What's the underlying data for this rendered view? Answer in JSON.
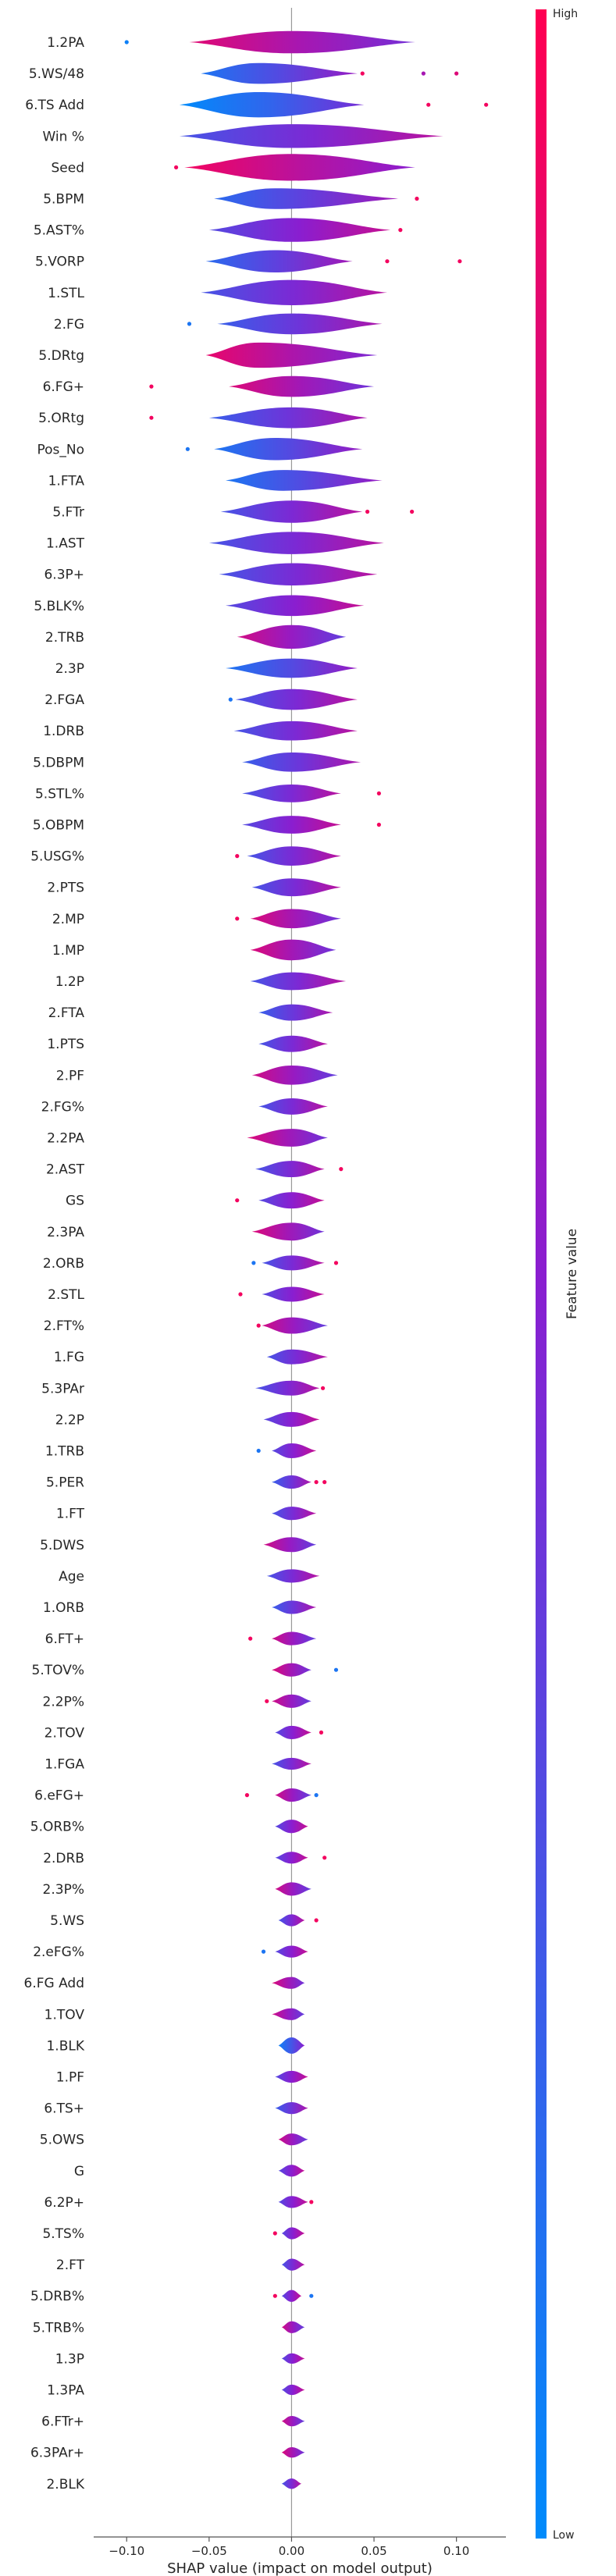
{
  "chart_data": {
    "type": "violin",
    "xlabel": "SHAP value (impact on model output)",
    "xlim": [
      -0.12,
      0.13
    ],
    "xticks": [
      -0.1,
      -0.05,
      0.0,
      0.05,
      0.1
    ],
    "xtick_labels": [
      "−0.10",
      "−0.05",
      "0.00",
      "0.05",
      "0.10"
    ],
    "colorbar": {
      "title": "Feature value",
      "high_label": "High",
      "low_label": "Low",
      "low_color": "#008bfb",
      "high_color": "#ff0052"
    },
    "features": [
      {
        "name": "1.2PA",
        "lo": -0.062,
        "hi": 0.075,
        "peak": 0.0,
        "width": 0.75,
        "hue": 0.62,
        "outliers": [
          [
            -0.1,
            0.05
          ]
        ]
      },
      {
        "name": "5.WS/48",
        "lo": -0.055,
        "hi": 0.04,
        "peak": -0.02,
        "width": 0.7,
        "hue": 0.3,
        "outliers": [
          [
            0.043,
            0.95
          ],
          [
            0.08,
            0.62
          ],
          [
            0.1,
            0.85
          ]
        ]
      },
      {
        "name": "6.TS Add",
        "lo": -0.068,
        "hi": 0.044,
        "peak": -0.02,
        "width": 0.85,
        "hue": 0.18,
        "outliers": [
          [
            0.083,
            0.95
          ],
          [
            0.118,
            0.95
          ]
        ]
      },
      {
        "name": "Win %",
        "lo": -0.068,
        "hi": 0.092,
        "peak": 0.0,
        "width": 0.8,
        "hue": 0.45,
        "outliers": []
      },
      {
        "name": "Seed",
        "lo": -0.065,
        "hi": 0.075,
        "peak": 0.0,
        "width": 0.9,
        "hue": 0.7,
        "outliers": [
          [
            -0.07,
            0.95
          ]
        ]
      },
      {
        "name": "5.BPM",
        "lo": -0.047,
        "hi": 0.065,
        "peak": -0.01,
        "width": 0.7,
        "hue": 0.35,
        "outliers": [
          [
            0.076,
            0.95
          ]
        ]
      },
      {
        "name": "5.AST%",
        "lo": -0.05,
        "hi": 0.06,
        "peak": 0.0,
        "width": 0.8,
        "hue": 0.5,
        "outliers": [
          [
            0.066,
            0.95
          ]
        ]
      },
      {
        "name": "5.VORP",
        "lo": -0.052,
        "hi": 0.037,
        "peak": -0.01,
        "width": 0.75,
        "hue": 0.35,
        "outliers": [
          [
            0.058,
            0.95
          ],
          [
            0.102,
            0.95
          ]
        ]
      },
      {
        "name": "1.STL",
        "lo": -0.055,
        "hi": 0.058,
        "peak": 0.0,
        "width": 0.85,
        "hue": 0.45,
        "outliers": []
      },
      {
        "name": "2.FG",
        "lo": -0.045,
        "hi": 0.055,
        "peak": 0.0,
        "width": 0.7,
        "hue": 0.4,
        "outliers": [
          [
            -0.062,
            0.1
          ]
        ]
      },
      {
        "name": "5.DRtg",
        "lo": -0.052,
        "hi": 0.052,
        "peak": -0.02,
        "width": 0.85,
        "hue": 0.65,
        "outliers": []
      },
      {
        "name": "6.FG+",
        "lo": -0.038,
        "hi": 0.05,
        "peak": 0.0,
        "width": 0.7,
        "hue": 0.6,
        "outliers": [
          [
            -0.085,
            0.95
          ]
        ]
      },
      {
        "name": "5.ORtg",
        "lo": -0.05,
        "hi": 0.046,
        "peak": 0.0,
        "width": 0.7,
        "hue": 0.4,
        "outliers": [
          [
            -0.085,
            0.95
          ]
        ]
      },
      {
        "name": "Pos_No",
        "lo": -0.047,
        "hi": 0.043,
        "peak": -0.01,
        "width": 0.75,
        "hue": 0.3,
        "outliers": [
          [
            -0.063,
            0.1
          ]
        ]
      },
      {
        "name": "1.FTA",
        "lo": -0.04,
        "hi": 0.055,
        "peak": -0.005,
        "width": 0.7,
        "hue": 0.3,
        "outliers": []
      },
      {
        "name": "5.FTr",
        "lo": -0.043,
        "hi": 0.043,
        "peak": 0.0,
        "width": 0.75,
        "hue": 0.45,
        "outliers": [
          [
            0.046,
            0.95
          ],
          [
            0.073,
            0.95
          ]
        ]
      },
      {
        "name": "1.AST",
        "lo": -0.05,
        "hi": 0.056,
        "peak": 0.0,
        "width": 0.75,
        "hue": 0.45,
        "outliers": []
      },
      {
        "name": "6.3P+",
        "lo": -0.044,
        "hi": 0.052,
        "peak": 0.0,
        "width": 0.75,
        "hue": 0.45,
        "outliers": []
      },
      {
        "name": "5.BLK%",
        "lo": -0.04,
        "hi": 0.044,
        "peak": 0.0,
        "width": 0.7,
        "hue": 0.5,
        "outliers": []
      },
      {
        "name": "2.TRB",
        "lo": -0.033,
        "hi": 0.033,
        "peak": 0.0,
        "width": 0.8,
        "hue": 0.55,
        "outliers": []
      },
      {
        "name": "2.3P",
        "lo": -0.04,
        "hi": 0.04,
        "peak": 0.0,
        "width": 0.65,
        "hue": 0.3,
        "outliers": []
      },
      {
        "name": "2.FGA",
        "lo": -0.034,
        "hi": 0.04,
        "peak": 0.0,
        "width": 0.7,
        "hue": 0.45,
        "outliers": [
          [
            -0.037,
            0.1
          ]
        ]
      },
      {
        "name": "1.DRB",
        "lo": -0.035,
        "hi": 0.04,
        "peak": 0.0,
        "width": 0.65,
        "hue": 0.45,
        "outliers": []
      },
      {
        "name": "5.DBPM",
        "lo": -0.03,
        "hi": 0.042,
        "peak": 0.0,
        "width": 0.65,
        "hue": 0.4,
        "outliers": []
      },
      {
        "name": "5.STL%",
        "lo": -0.03,
        "hi": 0.03,
        "peak": 0.0,
        "width": 0.6,
        "hue": 0.45,
        "outliers": [
          [
            0.053,
            0.95
          ]
        ]
      },
      {
        "name": "5.OBPM",
        "lo": -0.03,
        "hi": 0.03,
        "peak": 0.0,
        "width": 0.6,
        "hue": 0.5,
        "outliers": [
          [
            0.053,
            0.95
          ]
        ]
      },
      {
        "name": "5.USG%",
        "lo": -0.027,
        "hi": 0.03,
        "peak": 0.0,
        "width": 0.65,
        "hue": 0.45,
        "outliers": [
          [
            -0.033,
            0.95
          ]
        ]
      },
      {
        "name": "2.PTS",
        "lo": -0.024,
        "hi": 0.03,
        "peak": 0.0,
        "width": 0.6,
        "hue": 0.45,
        "outliers": []
      },
      {
        "name": "2.MP",
        "lo": -0.025,
        "hi": 0.03,
        "peak": 0.0,
        "width": 0.65,
        "hue": 0.6,
        "outliers": [
          [
            -0.033,
            0.95
          ]
        ]
      },
      {
        "name": "1.MP",
        "lo": -0.025,
        "hi": 0.027,
        "peak": 0.0,
        "width": 0.7,
        "hue": 0.6,
        "outliers": []
      },
      {
        "name": "1.2P",
        "lo": -0.025,
        "hi": 0.033,
        "peak": 0.0,
        "width": 0.6,
        "hue": 0.45,
        "outliers": []
      },
      {
        "name": "2.FTA",
        "lo": -0.02,
        "hi": 0.025,
        "peak": 0.0,
        "width": 0.55,
        "hue": 0.4,
        "outliers": []
      },
      {
        "name": "1.PTS",
        "lo": -0.02,
        "hi": 0.022,
        "peak": 0.0,
        "width": 0.55,
        "hue": 0.45,
        "outliers": []
      },
      {
        "name": "2.PF",
        "lo": -0.024,
        "hi": 0.028,
        "peak": 0.0,
        "width": 0.65,
        "hue": 0.55,
        "outliers": []
      },
      {
        "name": "2.FG%",
        "lo": -0.02,
        "hi": 0.022,
        "peak": 0.0,
        "width": 0.55,
        "hue": 0.45,
        "outliers": []
      },
      {
        "name": "2.2PA",
        "lo": -0.027,
        "hi": 0.022,
        "peak": 0.0,
        "width": 0.6,
        "hue": 0.6,
        "outliers": []
      },
      {
        "name": "2.AST",
        "lo": -0.022,
        "hi": 0.02,
        "peak": 0.0,
        "width": 0.55,
        "hue": 0.45,
        "outliers": [
          [
            0.03,
            0.95
          ]
        ]
      },
      {
        "name": "GS",
        "lo": -0.02,
        "hi": 0.02,
        "peak": 0.0,
        "width": 0.55,
        "hue": 0.5,
        "outliers": [
          [
            -0.033,
            0.95
          ]
        ]
      },
      {
        "name": "2.3PA",
        "lo": -0.024,
        "hi": 0.02,
        "peak": 0.0,
        "width": 0.6,
        "hue": 0.6,
        "outliers": []
      },
      {
        "name": "2.ORB",
        "lo": -0.018,
        "hi": 0.02,
        "peak": 0.0,
        "width": 0.5,
        "hue": 0.45,
        "outliers": [
          [
            -0.023,
            0.1
          ],
          [
            0.027,
            0.95
          ]
        ]
      },
      {
        "name": "2.STL",
        "lo": -0.018,
        "hi": 0.02,
        "peak": 0.0,
        "width": 0.5,
        "hue": 0.5,
        "outliers": [
          [
            -0.031,
            0.95
          ]
        ]
      },
      {
        "name": "2.FT%",
        "lo": -0.018,
        "hi": 0.022,
        "peak": 0.0,
        "width": 0.55,
        "hue": 0.55,
        "outliers": [
          [
            -0.02,
            0.95
          ]
        ]
      },
      {
        "name": "1.FG",
        "lo": -0.015,
        "hi": 0.022,
        "peak": 0.0,
        "width": 0.5,
        "hue": 0.45,
        "outliers": []
      },
      {
        "name": "5.3PAr",
        "lo": -0.022,
        "hi": 0.017,
        "peak": 0.0,
        "width": 0.5,
        "hue": 0.45,
        "outliers": [
          [
            0.019,
            0.95
          ]
        ]
      },
      {
        "name": "2.2P",
        "lo": -0.017,
        "hi": 0.017,
        "peak": 0.0,
        "width": 0.5,
        "hue": 0.5,
        "outliers": []
      },
      {
        "name": "1.TRB",
        "lo": -0.012,
        "hi": 0.015,
        "peak": 0.0,
        "width": 0.5,
        "hue": 0.5,
        "outliers": [
          [
            -0.02,
            0.1
          ]
        ]
      },
      {
        "name": "5.PER",
        "lo": -0.012,
        "hi": 0.012,
        "peak": 0.0,
        "width": 0.45,
        "hue": 0.4,
        "outliers": [
          [
            0.015,
            0.95
          ],
          [
            0.02,
            0.95
          ]
        ]
      },
      {
        "name": "1.FT",
        "lo": -0.012,
        "hi": 0.015,
        "peak": 0.0,
        "width": 0.45,
        "hue": 0.45,
        "outliers": []
      },
      {
        "name": "5.DWS",
        "lo": -0.017,
        "hi": 0.015,
        "peak": 0.0,
        "width": 0.5,
        "hue": 0.55,
        "outliers": []
      },
      {
        "name": "Age",
        "lo": -0.015,
        "hi": 0.017,
        "peak": 0.0,
        "width": 0.45,
        "hue": 0.45,
        "outliers": []
      },
      {
        "name": "1.ORB",
        "lo": -0.012,
        "hi": 0.015,
        "peak": 0.0,
        "width": 0.45,
        "hue": 0.4,
        "outliers": []
      },
      {
        "name": "6.FT+",
        "lo": -0.012,
        "hi": 0.015,
        "peak": 0.0,
        "width": 0.45,
        "hue": 0.55,
        "outliers": [
          [
            -0.025,
            0.95
          ]
        ]
      },
      {
        "name": "5.TOV%",
        "lo": -0.012,
        "hi": 0.012,
        "peak": 0.0,
        "width": 0.45,
        "hue": 0.6,
        "outliers": [
          [
            0.027,
            0.1
          ]
        ]
      },
      {
        "name": "2.2P%",
        "lo": -0.012,
        "hi": 0.012,
        "peak": 0.0,
        "width": 0.45,
        "hue": 0.55,
        "outliers": [
          [
            -0.015,
            0.95
          ]
        ]
      },
      {
        "name": "2.TOV",
        "lo": -0.01,
        "hi": 0.012,
        "peak": 0.0,
        "width": 0.45,
        "hue": 0.5,
        "outliers": [
          [
            0.018,
            0.95
          ]
        ]
      },
      {
        "name": "1.FGA",
        "lo": -0.012,
        "hi": 0.012,
        "peak": 0.0,
        "width": 0.4,
        "hue": 0.45,
        "outliers": []
      },
      {
        "name": "6.eFG+",
        "lo": -0.01,
        "hi": 0.012,
        "peak": 0.0,
        "width": 0.45,
        "hue": 0.55,
        "outliers": [
          [
            -0.027,
            0.95
          ],
          [
            0.015,
            0.1
          ]
        ]
      },
      {
        "name": "5.ORB%",
        "lo": -0.01,
        "hi": 0.01,
        "peak": 0.0,
        "width": 0.45,
        "hue": 0.5,
        "outliers": []
      },
      {
        "name": "2.DRB",
        "lo": -0.01,
        "hi": 0.01,
        "peak": 0.0,
        "width": 0.4,
        "hue": 0.5,
        "outliers": [
          [
            0.02,
            0.95
          ]
        ]
      },
      {
        "name": "2.3P%",
        "lo": -0.01,
        "hi": 0.012,
        "peak": 0.0,
        "width": 0.45,
        "hue": 0.55,
        "outliers": []
      },
      {
        "name": "5.WS",
        "lo": -0.008,
        "hi": 0.008,
        "peak": 0.0,
        "width": 0.4,
        "hue": 0.45,
        "outliers": [
          [
            0.015,
            0.95
          ]
        ]
      },
      {
        "name": "2.eFG%",
        "lo": -0.01,
        "hi": 0.01,
        "peak": 0.0,
        "width": 0.4,
        "hue": 0.5,
        "outliers": [
          [
            -0.017,
            0.1
          ]
        ]
      },
      {
        "name": "6.FG Add",
        "lo": -0.012,
        "hi": 0.008,
        "peak": 0.0,
        "width": 0.4,
        "hue": 0.6,
        "outliers": []
      },
      {
        "name": "1.TOV",
        "lo": -0.012,
        "hi": 0.008,
        "peak": 0.0,
        "width": 0.4,
        "hue": 0.55,
        "outliers": []
      },
      {
        "name": "1.BLK",
        "lo": -0.008,
        "hi": 0.008,
        "peak": 0.0,
        "width": 0.55,
        "hue": 0.25,
        "outliers": []
      },
      {
        "name": "1.PF",
        "lo": -0.01,
        "hi": 0.01,
        "peak": 0.0,
        "width": 0.4,
        "hue": 0.5,
        "outliers": []
      },
      {
        "name": "6.TS+",
        "lo": -0.01,
        "hi": 0.01,
        "peak": 0.0,
        "width": 0.4,
        "hue": 0.4,
        "outliers": []
      },
      {
        "name": "5.OWS",
        "lo": -0.008,
        "hi": 0.01,
        "peak": 0.0,
        "width": 0.4,
        "hue": 0.55,
        "outliers": []
      },
      {
        "name": "G",
        "lo": -0.008,
        "hi": 0.008,
        "peak": 0.0,
        "width": 0.4,
        "hue": 0.5,
        "outliers": []
      },
      {
        "name": "6.2P+",
        "lo": -0.008,
        "hi": 0.01,
        "peak": 0.0,
        "width": 0.4,
        "hue": 0.5,
        "outliers": [
          [
            0.012,
            0.95
          ]
        ]
      },
      {
        "name": "5.TS%",
        "lo": -0.006,
        "hi": 0.008,
        "peak": 0.0,
        "width": 0.4,
        "hue": 0.5,
        "outliers": [
          [
            -0.01,
            0.95
          ]
        ]
      },
      {
        "name": "2.FT",
        "lo": -0.006,
        "hi": 0.008,
        "peak": 0.0,
        "width": 0.4,
        "hue": 0.45,
        "outliers": []
      },
      {
        "name": "5.DRB%",
        "lo": -0.006,
        "hi": 0.006,
        "peak": 0.0,
        "width": 0.4,
        "hue": 0.5,
        "outliers": [
          [
            -0.01,
            0.95
          ],
          [
            0.012,
            0.1
          ]
        ]
      },
      {
        "name": "5.TRB%",
        "lo": -0.006,
        "hi": 0.008,
        "peak": 0.0,
        "width": 0.4,
        "hue": 0.55,
        "outliers": []
      },
      {
        "name": "1.3P",
        "lo": -0.006,
        "hi": 0.008,
        "peak": 0.0,
        "width": 0.35,
        "hue": 0.5,
        "outliers": []
      },
      {
        "name": "1.3PA",
        "lo": -0.006,
        "hi": 0.008,
        "peak": 0.0,
        "width": 0.35,
        "hue": 0.5,
        "outliers": []
      },
      {
        "name": "6.FTr+",
        "lo": -0.006,
        "hi": 0.008,
        "peak": 0.0,
        "width": 0.35,
        "hue": 0.55,
        "outliers": []
      },
      {
        "name": "6.3PAr+",
        "lo": -0.006,
        "hi": 0.008,
        "peak": 0.0,
        "width": 0.35,
        "hue": 0.6,
        "outliers": []
      },
      {
        "name": "2.BLK",
        "lo": -0.006,
        "hi": 0.006,
        "peak": 0.0,
        "width": 0.35,
        "hue": 0.45,
        "outliers": []
      }
    ]
  }
}
